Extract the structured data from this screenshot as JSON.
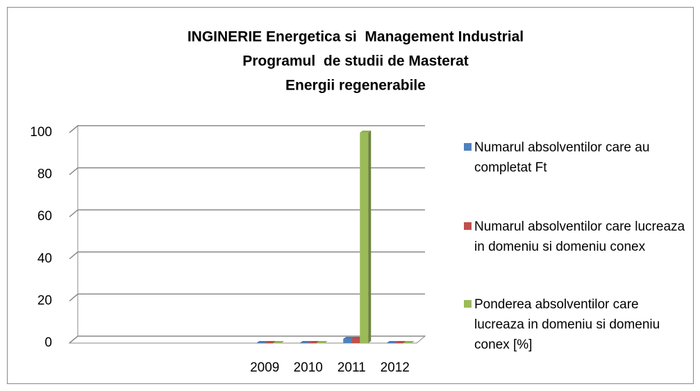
{
  "chart_data": {
    "type": "bar3d",
    "title": [
      "INGINERIE Energetica si  Management Industrial",
      "Programul  de studii de Masterat",
      "Energii regenerabile"
    ],
    "categories": [
      null,
      null,
      null,
      null,
      "2009",
      "2010",
      "2011",
      "2012"
    ],
    "series": [
      {
        "name": "Numarul absolventilor care au completat Ft",
        "color": "#4f81bd",
        "values": [
          null,
          null,
          null,
          null,
          0,
          0,
          2,
          0
        ]
      },
      {
        "name": "Numarul absolventilor care lucreaza in domeniu si domeniu conex",
        "color": "#c0504d",
        "values": [
          null,
          null,
          null,
          null,
          0,
          0,
          2,
          0
        ]
      },
      {
        "name": "Ponderea absolventilor care  lucreaza in domeniu si domeniu conex [%]",
        "color": "#9bbb59",
        "values": [
          null,
          null,
          null,
          null,
          0,
          0,
          100,
          0
        ]
      }
    ],
    "ylim": [
      0,
      100
    ],
    "yticks": [
      0,
      20,
      40,
      60,
      80,
      100
    ],
    "grid": true,
    "legend": "right"
  }
}
